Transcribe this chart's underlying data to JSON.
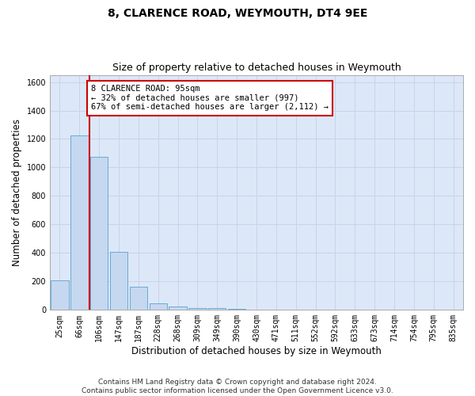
{
  "title": "8, CLARENCE ROAD, WEYMOUTH, DT4 9EE",
  "subtitle": "Size of property relative to detached houses in Weymouth",
  "xlabel": "Distribution of detached houses by size in Weymouth",
  "ylabel": "Number of detached properties",
  "categories": [
    "25sqm",
    "66sqm",
    "106sqm",
    "147sqm",
    "187sqm",
    "228sqm",
    "268sqm",
    "309sqm",
    "349sqm",
    "390sqm",
    "430sqm",
    "471sqm",
    "511sqm",
    "552sqm",
    "592sqm",
    "633sqm",
    "673sqm",
    "714sqm",
    "754sqm",
    "795sqm",
    "835sqm"
  ],
  "values": [
    205,
    1225,
    1075,
    410,
    163,
    45,
    25,
    15,
    13,
    10,
    0,
    0,
    0,
    0,
    0,
    0,
    0,
    0,
    0,
    0,
    0
  ],
  "bar_color": "#c5d8f0",
  "bar_edge_color": "#6aaad4",
  "vline_color": "#cc0000",
  "annotation_line1": "8 CLARENCE ROAD: 95sqm",
  "annotation_line2": "← 32% of detached houses are smaller (997)",
  "annotation_line3": "67% of semi-detached houses are larger (2,112) →",
  "annotation_box_color": "#ffffff",
  "annotation_box_edge_color": "#cc0000",
  "ylim": [
    0,
    1650
  ],
  "yticks": [
    0,
    200,
    400,
    600,
    800,
    1000,
    1200,
    1400,
    1600
  ],
  "grid_color": "#c8d4e8",
  "plot_bg_color": "#dce8f8",
  "fig_bg_color": "#ffffff",
  "footer": "Contains HM Land Registry data © Crown copyright and database right 2024.\nContains public sector information licensed under the Open Government Licence v3.0.",
  "title_fontsize": 10,
  "subtitle_fontsize": 9,
  "xlabel_fontsize": 8.5,
  "ylabel_fontsize": 8.5,
  "tick_fontsize": 7,
  "footer_fontsize": 6.5,
  "annotation_fontsize": 7.5
}
